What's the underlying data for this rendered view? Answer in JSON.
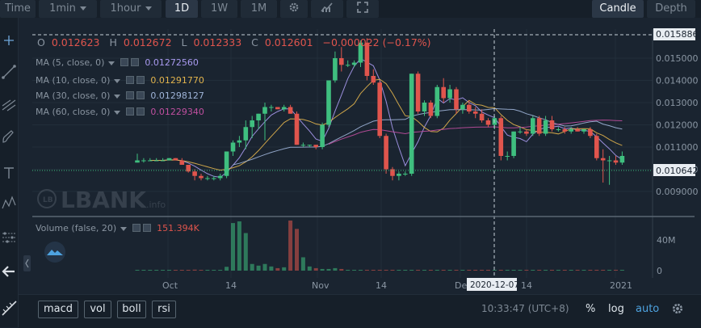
{
  "toolbar": {
    "time_label": "Time",
    "interval": "1min",
    "period": "1hour",
    "ranges": [
      "1D",
      "1W",
      "1M"
    ],
    "active_range": "1D",
    "candle_label": "Candle",
    "depth_label": "Depth"
  },
  "ohlc": {
    "o_label": "O",
    "o_value": "0.012623",
    "h_label": "H",
    "h_value": "0.012672",
    "l_label": "L",
    "l_value": "0.012333",
    "c_label": "C",
    "c_value": "0.012601",
    "change": "−0.000022 (−0.17%)"
  },
  "indicators": [
    {
      "name": "MA (5, close, 0)",
      "value": "0.01272560",
      "color": "#a99af0"
    },
    {
      "name": "MA (10, close, 0)",
      "value": "0.01291770",
      "color": "#e2b44d"
    },
    {
      "name": "MA (30, close, 0)",
      "value": "0.01298127",
      "color": "#9fb4d8"
    },
    {
      "name": "MA (60, close, 0)",
      "value": "0.01229340",
      "color": "#c04fa0"
    }
  ],
  "volume_legend": {
    "name": "Volume (false, 20)",
    "value": "151.394K"
  },
  "watermark": "LBANK",
  "watermark_sub": ".info",
  "price_axis": {
    "ticks": [
      "0.015000",
      "0.014000",
      "0.013000",
      "0.012000",
      "0.011000",
      "0.010000",
      "0.009000"
    ],
    "crosshair_price": "0.015886",
    "last_price": "0.010642"
  },
  "volume_axis": {
    "ticks": [
      "40M",
      "0"
    ]
  },
  "time_axis": {
    "ticks": [
      "Oct",
      "14",
      "Nov",
      "14",
      "De",
      "14",
      "2021"
    ],
    "crosshair_date": "2020-12-07"
  },
  "bottom": {
    "indicator_buttons": [
      "macd",
      "vol",
      "boll",
      "rsi"
    ],
    "clock": "10:33:47 (UTC+8)",
    "percent_label": "%",
    "log_label": "log",
    "auto_label": "auto"
  },
  "colors": {
    "up": "#3fbf7f",
    "down": "#e0554d",
    "bg": "#1a2430"
  },
  "chart_data": {
    "type": "candlestick",
    "price_range": [
      0.00875,
      0.016
    ],
    "candles": [
      [
        0.0103,
        0.0107,
        0.0103,
        0.0104
      ],
      [
        0.0104,
        0.0105,
        0.0103,
        0.0104
      ],
      [
        0.0104,
        0.0105,
        0.0104,
        0.0104
      ],
      [
        0.0104,
        0.0105,
        0.0104,
        0.0104
      ],
      [
        0.0104,
        0.0105,
        0.0104,
        0.0104
      ],
      [
        0.0104,
        0.0105,
        0.0104,
        0.0105
      ],
      [
        0.0105,
        0.0105,
        0.0104,
        0.0104
      ],
      [
        0.0104,
        0.0105,
        0.0102,
        0.0102
      ],
      [
        0.0102,
        0.0102,
        0.00985,
        0.0099
      ],
      [
        0.0099,
        0.01,
        0.0095,
        0.0097
      ],
      [
        0.0097,
        0.0098,
        0.0095,
        0.0096
      ],
      [
        0.0096,
        0.0097,
        0.0095,
        0.0096
      ],
      [
        0.0096,
        0.0097,
        0.0095,
        0.0096
      ],
      [
        0.0096,
        0.0098,
        0.0095,
        0.0097
      ],
      [
        0.0097,
        0.0108,
        0.0096,
        0.0108
      ],
      [
        0.0108,
        0.0113,
        0.0106,
        0.0112
      ],
      [
        0.0112,
        0.0115,
        0.011,
        0.0113
      ],
      [
        0.0113,
        0.0122,
        0.0109,
        0.0119
      ],
      [
        0.0119,
        0.0124,
        0.0114,
        0.0122
      ],
      [
        0.0122,
        0.0125,
        0.0118,
        0.0125
      ],
      [
        0.0125,
        0.013,
        0.0113,
        0.0128
      ],
      [
        0.0128,
        0.0129,
        0.0126,
        0.0128
      ],
      [
        0.0128,
        0.0128,
        0.0127,
        0.0127
      ],
      [
        0.0127,
        0.0129,
        0.0126,
        0.0128
      ],
      [
        0.0128,
        0.0129,
        0.0125,
        0.0125
      ],
      [
        0.0125,
        0.0126,
        0.0111,
        0.0111
      ],
      [
        0.0111,
        0.0112,
        0.011,
        0.0111
      ],
      [
        0.0111,
        0.0111,
        0.011,
        0.0111
      ],
      [
        0.0111,
        0.0111,
        0.0109,
        0.011
      ],
      [
        0.011,
        0.0121,
        0.0109,
        0.012
      ],
      [
        0.012,
        0.014,
        0.0119,
        0.014
      ],
      [
        0.014,
        0.0153,
        0.0139,
        0.015
      ],
      [
        0.015,
        0.0155,
        0.0144,
        0.0147
      ],
      [
        0.0147,
        0.0149,
        0.0146,
        0.0147
      ],
      [
        0.0147,
        0.0149,
        0.0146,
        0.0148
      ],
      [
        0.0148,
        0.0158,
        0.0146,
        0.0157
      ],
      [
        0.0157,
        0.0159,
        0.014,
        0.0142
      ],
      [
        0.0142,
        0.0145,
        0.0138,
        0.0139
      ],
      [
        0.0139,
        0.014,
        0.0114,
        0.0115
      ],
      [
        0.0115,
        0.0116,
        0.0098,
        0.01
      ],
      [
        0.01,
        0.0101,
        0.0095,
        0.0097
      ],
      [
        0.0097,
        0.0099,
        0.0095,
        0.0098
      ],
      [
        0.0098,
        0.0099,
        0.0097,
        0.0098
      ],
      [
        0.0098,
        0.0143,
        0.0097,
        0.0143
      ],
      [
        0.0143,
        0.0144,
        0.0125,
        0.0126
      ],
      [
        0.0126,
        0.0131,
        0.0124,
        0.013
      ],
      [
        0.013,
        0.0131,
        0.0123,
        0.0124
      ],
      [
        0.0124,
        0.0138,
        0.0123,
        0.0137
      ],
      [
        0.0137,
        0.0141,
        0.013,
        0.0132
      ],
      [
        0.0132,
        0.0138,
        0.013,
        0.0136
      ],
      [
        0.0136,
        0.0137,
        0.0125,
        0.0127
      ],
      [
        0.0127,
        0.013,
        0.0125,
        0.0129
      ],
      [
        0.0129,
        0.0131,
        0.0125,
        0.0126
      ],
      [
        0.0126,
        0.0128,
        0.0123,
        0.0125
      ],
      [
        0.0125,
        0.0127,
        0.0121,
        0.0122
      ],
      [
        0.0122,
        0.0123,
        0.0119,
        0.012
      ],
      [
        0.012,
        0.0124,
        0.0118,
        0.0123
      ],
      [
        0.0123,
        0.0124,
        0.0104,
        0.0106
      ],
      [
        0.0106,
        0.0108,
        0.0104,
        0.0106
      ],
      [
        0.0106,
        0.0117,
        0.0105,
        0.0117
      ],
      [
        0.0117,
        0.0119,
        0.0116,
        0.0117
      ],
      [
        0.0117,
        0.0118,
        0.0115,
        0.0116
      ],
      [
        0.0116,
        0.0124,
        0.0115,
        0.0123
      ],
      [
        0.0123,
        0.0124,
        0.0115,
        0.0116
      ],
      [
        0.0116,
        0.0124,
        0.0115,
        0.0122
      ],
      [
        0.0122,
        0.0124,
        0.0117,
        0.0118
      ],
      [
        0.0118,
        0.0119,
        0.0117,
        0.0118
      ],
      [
        0.0118,
        0.0119,
        0.0116,
        0.0117
      ],
      [
        0.0117,
        0.0119,
        0.0116,
        0.0118
      ],
      [
        0.0118,
        0.0119,
        0.0117,
        0.0117
      ],
      [
        0.0117,
        0.0118,
        0.0116,
        0.0118
      ],
      [
        0.0118,
        0.0119,
        0.0114,
        0.0115
      ],
      [
        0.0115,
        0.0116,
        0.0104,
        0.0105
      ],
      [
        0.0105,
        0.0109,
        0.0094,
        0.0104
      ],
      [
        0.0104,
        0.0106,
        0.0093,
        0.0104
      ],
      [
        0.0104,
        0.0106,
        0.0102,
        0.0103
      ],
      [
        0.0103,
        0.0108,
        0.0102,
        0.0106
      ]
    ],
    "volume": [
      0.4,
      0.3,
      0.3,
      0.3,
      0.2,
      0.3,
      0.3,
      0.5,
      0.8,
      1.2,
      0.8,
      0.6,
      0.5,
      0.9,
      4.6,
      57,
      59,
      45,
      8,
      6,
      8,
      5,
      3,
      4,
      60,
      50,
      16,
      5,
      3,
      2,
      2,
      3,
      2,
      1,
      1,
      1,
      1,
      1,
      1,
      1,
      1,
      1,
      1,
      1,
      1,
      1,
      1,
      1,
      1,
      1,
      1,
      1,
      1,
      1,
      1,
      1,
      1,
      1,
      1,
      1,
      1,
      1,
      1,
      1,
      1,
      1,
      1,
      1,
      1,
      1,
      1,
      1,
      1,
      1,
      1,
      1,
      1
    ],
    "volume_range": [
      0,
      60
    ]
  }
}
